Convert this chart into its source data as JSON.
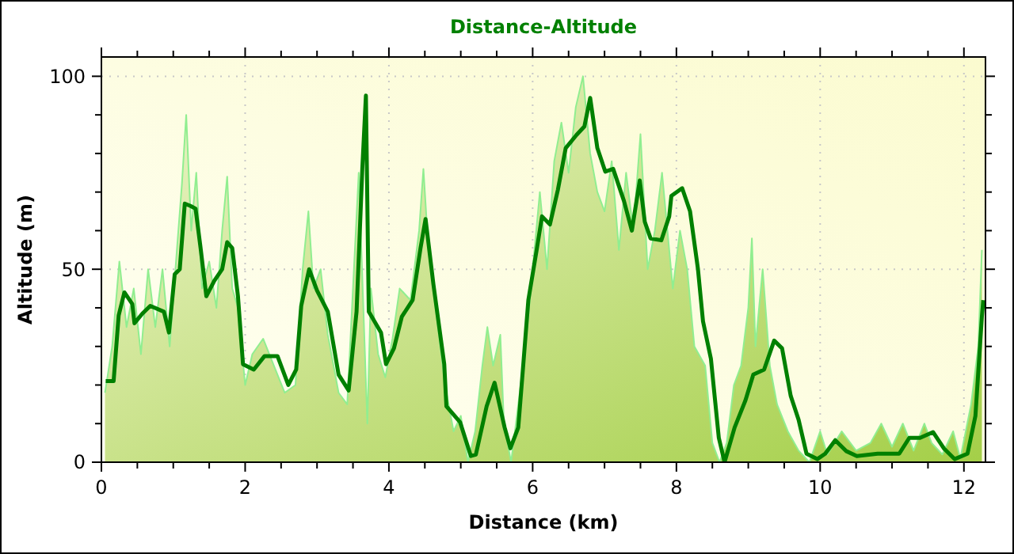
{
  "chart_data": {
    "type": "area",
    "title": "Distance-Altitude",
    "xlabel": "Distance (km)",
    "ylabel": "Altitude (m)",
    "xlim": [
      0,
      12.3
    ],
    "ylim": [
      0,
      105
    ],
    "xticks": [
      0,
      {
        "value": 0.5,
        "label": null
      },
      2,
      {
        "value": 1,
        "label": null
      },
      {
        "value": 1.5,
        "label": null
      },
      {
        "value": 2.5,
        "label": null
      },
      {
        "value": 3,
        "label": null
      },
      {
        "value": 3.5,
        "label": null
      },
      4,
      {
        "value": 4.5,
        "label": null
      },
      {
        "value": 5,
        "label": null
      },
      {
        "value": 5.5,
        "label": null
      },
      6,
      {
        "value": 6.5,
        "label": null
      },
      {
        "value": 7,
        "label": null
      },
      {
        "value": 7.5,
        "label": null
      },
      8,
      {
        "value": 8.5,
        "label": null
      },
      {
        "value": 9,
        "label": null
      },
      {
        "value": 9.5,
        "label": null
      },
      10,
      {
        "value": 10.5,
        "label": null
      },
      {
        "value": 11,
        "label": null
      },
      {
        "value": 11.5,
        "label": null
      },
      12
    ],
    "yticks": [
      0,
      {
        "value": 10,
        "label": null
      },
      {
        "value": 20,
        "label": null
      },
      {
        "value": 30,
        "label": null
      },
      {
        "value": 40,
        "label": null
      },
      50,
      {
        "value": 60,
        "label": null
      },
      {
        "value": 70,
        "label": null
      },
      {
        "value": 80,
        "label": null
      },
      {
        "value": 90,
        "label": null
      },
      100
    ],
    "grid": true,
    "marker": "none",
    "series": [
      {
        "color": "#90ee90",
        "x": [
          0.05,
          0.15,
          0.25,
          0.35,
          0.45,
          0.55,
          0.65,
          0.75,
          0.85,
          0.95,
          1.05,
          1.12,
          1.18,
          1.25,
          1.32,
          1.4,
          1.5,
          1.6,
          1.68,
          1.75,
          1.82,
          1.9,
          2.0,
          2.1,
          2.25,
          2.4,
          2.55,
          2.7,
          2.8,
          2.88,
          2.95,
          3.05,
          3.15,
          3.3,
          3.42,
          3.5,
          3.58,
          3.62,
          3.66,
          3.7,
          3.75,
          3.85,
          3.95,
          4.05,
          4.15,
          4.3,
          4.42,
          4.48,
          4.55,
          4.65,
          4.78,
          4.9,
          5.0,
          5.1,
          5.2,
          5.3,
          5.37,
          5.45,
          5.55,
          5.6,
          5.7,
          5.8,
          5.9,
          6.0,
          6.1,
          6.2,
          6.3,
          6.4,
          6.5,
          6.6,
          6.7,
          6.8,
          6.9,
          7.0,
          7.1,
          7.2,
          7.3,
          7.4,
          7.5,
          7.6,
          7.7,
          7.8,
          7.88,
          7.95,
          8.05,
          8.15,
          8.25,
          8.4,
          8.5,
          8.6,
          8.7,
          8.8,
          8.9,
          9.0,
          9.05,
          9.1,
          9.2,
          9.3,
          9.4,
          9.55,
          9.7,
          9.85,
          10.0,
          10.1,
          10.3,
          10.5,
          10.7,
          10.85,
          11.0,
          11.15,
          11.3,
          11.45,
          11.55,
          11.7,
          11.85,
          11.95,
          12.1,
          12.2,
          12.25
        ],
        "values": [
          18,
          30,
          52,
          35,
          45,
          28,
          50,
          35,
          50,
          30,
          55,
          72,
          90,
          60,
          75,
          45,
          52,
          40,
          60,
          74,
          45,
          40,
          20,
          28,
          32,
          25,
          18,
          20,
          50,
          65,
          45,
          50,
          33,
          18,
          15,
          45,
          75,
          null,
          null,
          10,
          45,
          28,
          22,
          32,
          45,
          42,
          60,
          76,
          55,
          40,
          20,
          8,
          12,
          0,
          8,
          25,
          35,
          25,
          33,
          10,
          0,
          15,
          30,
          50,
          70,
          50,
          78,
          88,
          75,
          92,
          100,
          80,
          70,
          65,
          78,
          55,
          75,
          60,
          85,
          50,
          60,
          75,
          null,
          45,
          60,
          50,
          30,
          25,
          5,
          0,
          5,
          20,
          25,
          40,
          58,
          30,
          50,
          25,
          15,
          8,
          3,
          0,
          8,
          2,
          8,
          3,
          5,
          10,
          4,
          10,
          3,
          10,
          5,
          2,
          8,
          1,
          15,
          30,
          55
        ]
      },
      {
        "type": "line",
        "color": "#008000",
        "x": [
          0.06,
          0.17,
          0.24,
          0.32,
          0.43,
          0.46,
          0.57,
          0.68,
          0.87,
          0.94,
          1.02,
          1.09,
          1.16,
          1.24,
          1.31,
          1.38,
          1.46,
          1.57,
          1.68,
          1.75,
          1.82,
          1.9,
          1.97,
          2.12,
          2.27,
          2.45,
          2.6,
          2.71,
          2.78,
          2.89,
          3.0,
          3.15,
          3.3,
          3.44,
          3.55,
          3.63,
          3.68,
          3.72,
          3.89,
          3.96,
          4.07,
          4.18,
          4.33,
          4.44,
          4.51,
          4.62,
          4.77,
          4.8,
          4.99,
          5.14,
          5.21,
          5.36,
          5.47,
          5.61,
          5.69,
          5.8,
          5.87,
          5.94,
          6.06,
          6.13,
          6.24,
          6.35,
          6.46,
          6.61,
          6.72,
          6.8,
          6.9,
          7.01,
          7.12,
          7.27,
          7.38,
          7.49,
          7.56,
          7.64,
          7.79,
          7.9,
          7.93,
          8.08,
          8.19,
          8.3,
          8.37,
          8.48,
          8.59,
          8.67,
          8.81,
          8.96,
          9.07,
          9.22,
          9.36,
          9.47,
          9.59,
          9.7,
          9.81,
          9.96,
          10.07,
          10.21,
          10.36,
          10.51,
          10.8,
          11.1,
          11.24,
          11.39,
          11.57,
          11.72,
          11.87,
          12.05,
          12.16,
          12.25,
          12.27
        ],
        "values": [
          21,
          21,
          38,
          44,
          41,
          36,
          38.5,
          40.5,
          39,
          33.6,
          48.7,
          50,
          67,
          66.4,
          65.7,
          55.5,
          43,
          47,
          50,
          57,
          55.5,
          43,
          25.4,
          24,
          27.5,
          27.5,
          20,
          24,
          40.5,
          50,
          44.5,
          39,
          22.7,
          18.6,
          39,
          76,
          95,
          39,
          33.6,
          25.4,
          29.5,
          37.7,
          42,
          55.5,
          63,
          46,
          25.4,
          14.5,
          10.4,
          1.6,
          2,
          14.5,
          20.6,
          9,
          3.6,
          9,
          25.4,
          42,
          55.5,
          63.7,
          61.6,
          70.5,
          81.4,
          84.8,
          87,
          94.4,
          81.4,
          75.3,
          76,
          67.7,
          60,
          73,
          62.3,
          58,
          57.5,
          63.7,
          69,
          71,
          65,
          50,
          36.5,
          26.8,
          6.3,
          0,
          9,
          16,
          22.7,
          24,
          31.5,
          29.5,
          17.2,
          11,
          2.2,
          0.8,
          2.2,
          5.7,
          2.9,
          1.6,
          2.2,
          2.2,
          6.3,
          6.3,
          7.8,
          3.6,
          0.8,
          2.2,
          12,
          37.7,
          42
        ]
      }
    ]
  }
}
